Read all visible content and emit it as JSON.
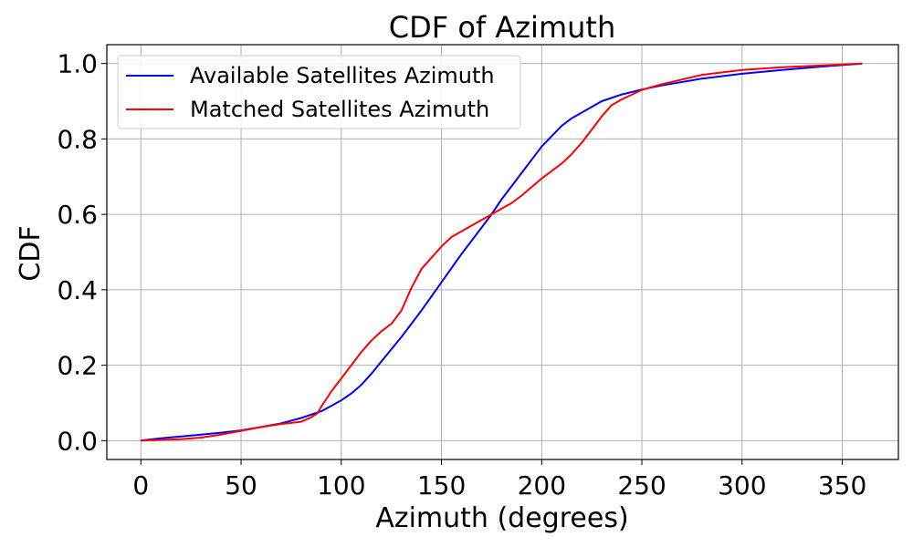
{
  "chart_data": {
    "type": "line",
    "title": "CDF of Azimuth",
    "xlabel": "Azimuth (degrees)",
    "ylabel": "CDF",
    "xlim": [
      -17,
      378
    ],
    "ylim": [
      -0.05,
      1.05
    ],
    "xticks": [
      0,
      50,
      100,
      150,
      200,
      250,
      300,
      350
    ],
    "yticks": [
      0.0,
      0.2,
      0.4,
      0.6,
      0.8,
      1.0
    ],
    "xtick_labels": [
      "0",
      "50",
      "100",
      "150",
      "200",
      "250",
      "300",
      "350"
    ],
    "ytick_labels": [
      "0.0",
      "0.2",
      "0.4",
      "0.6",
      "0.8",
      "1.0"
    ],
    "grid": true,
    "legend_position": "top-left",
    "series": [
      {
        "name": "Available Satellites Azimuth",
        "color": "#0000ff",
        "x": [
          0,
          10,
          20,
          30,
          40,
          50,
          60,
          70,
          80,
          90,
          95,
          100,
          105,
          110,
          115,
          120,
          130,
          140,
          150,
          160,
          170,
          175,
          180,
          190,
          200,
          210,
          215,
          220,
          230,
          240,
          250,
          260,
          280,
          300,
          320,
          340,
          360
        ],
        "y": [
          0.0,
          0.006,
          0.011,
          0.016,
          0.021,
          0.027,
          0.036,
          0.046,
          0.06,
          0.078,
          0.092,
          0.107,
          0.125,
          0.148,
          0.177,
          0.21,
          0.275,
          0.345,
          0.42,
          0.495,
          0.565,
          0.6,
          0.64,
          0.71,
          0.78,
          0.835,
          0.855,
          0.87,
          0.9,
          0.918,
          0.931,
          0.942,
          0.96,
          0.973,
          0.983,
          0.992,
          1.0
        ]
      },
      {
        "name": "Matched Satellites Azimuth",
        "color": "#ff0000",
        "x": [
          0,
          10,
          20,
          30,
          40,
          50,
          60,
          70,
          80,
          85,
          88,
          90,
          95,
          100,
          105,
          110,
          115,
          120,
          125,
          130,
          135,
          140,
          145,
          150,
          155,
          160,
          165,
          170,
          175,
          180,
          185,
          190,
          200,
          210,
          215,
          220,
          225,
          230,
          235,
          240,
          250,
          260,
          280,
          300,
          320,
          340,
          360
        ],
        "y": [
          0.0,
          0.002,
          0.004,
          0.008,
          0.016,
          0.026,
          0.036,
          0.044,
          0.05,
          0.062,
          0.072,
          0.09,
          0.13,
          0.165,
          0.2,
          0.235,
          0.265,
          0.29,
          0.31,
          0.345,
          0.405,
          0.455,
          0.485,
          0.515,
          0.54,
          0.555,
          0.57,
          0.585,
          0.6,
          0.615,
          0.63,
          0.65,
          0.695,
          0.735,
          0.76,
          0.79,
          0.825,
          0.86,
          0.89,
          0.905,
          0.93,
          0.945,
          0.97,
          0.983,
          0.99,
          0.995,
          1.0
        ]
      }
    ]
  }
}
